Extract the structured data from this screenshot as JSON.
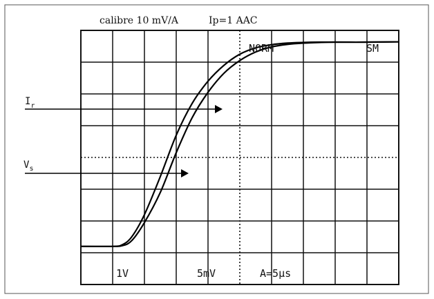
{
  "chart_data": {
    "type": "line",
    "caption_calibre": "calibre 10 mV/A",
    "caption_current": "Ip=1 AAC",
    "screen_labels": {
      "mode": "NORM",
      "channel": "SM",
      "volts_div": "1V",
      "mv_div": "5mV",
      "time_div": "A=5μs"
    },
    "xlim": [
      0,
      10
    ],
    "ylim": [
      -4,
      4
    ],
    "grid": true,
    "series": [
      {
        "name": "I_r",
        "x": [
          0,
          1,
          1.3,
          1.6,
          2,
          2.5,
          3,
          3.5,
          4,
          4.5,
          5,
          5.5,
          6,
          6.5,
          7,
          7.5,
          8,
          9,
          10
        ],
        "values": [
          -2.8,
          -2.8,
          -2.75,
          -2.5,
          -1.8,
          -0.6,
          0.7,
          1.7,
          2.4,
          2.9,
          3.25,
          3.45,
          3.55,
          3.6,
          3.62,
          3.63,
          3.63,
          3.63,
          3.64
        ]
      },
      {
        "name": "V_s",
        "x": [
          0,
          1,
          1.3,
          1.6,
          2,
          2.5,
          3,
          3.5,
          4,
          4.5,
          5,
          5.5,
          6,
          6.5,
          7,
          7.5,
          8,
          9,
          10
        ],
        "values": [
          -2.8,
          -2.8,
          -2.78,
          -2.62,
          -2.05,
          -1.1,
          0.15,
          1.25,
          2.05,
          2.65,
          3.05,
          3.32,
          3.48,
          3.56,
          3.6,
          3.62,
          3.63,
          3.63,
          3.64
        ]
      }
    ],
    "labels": {
      "ir_main": "I",
      "ir_sub": "r",
      "vs_main": "V",
      "vs_sub": "s"
    }
  }
}
